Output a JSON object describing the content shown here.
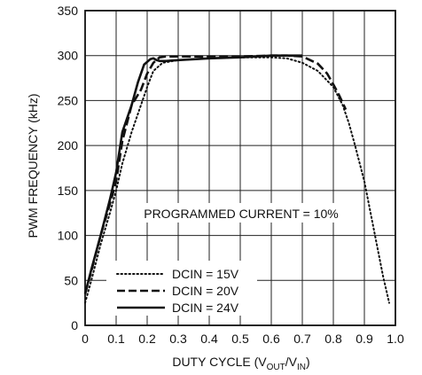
{
  "chart_data": {
    "type": "line",
    "xlabel": "DUTY CYCLE (V",
    "xlabel_sub1": "OUT",
    "xlabel_mid": "/V",
    "xlabel_sub2": "IN",
    "xlabel_end": ")",
    "ylabel": "PWM FREQUENCY (kHz)",
    "xlim": [
      0,
      1.0
    ],
    "ylim": [
      0,
      350
    ],
    "xticks": [
      "0",
      "0.1",
      "0.2",
      "0.3",
      "0.4",
      "0.5",
      "0.6",
      "0.7",
      "0.8",
      "0.9",
      "1.0"
    ],
    "yticks": [
      "0",
      "50",
      "100",
      "150",
      "200",
      "250",
      "300",
      "350"
    ],
    "grid": true,
    "legend_placement": "bottom-left",
    "annotation": "PROGRAMMED CURRENT = 10%",
    "series": [
      {
        "name": "DCIN = 15V",
        "style": "dotted",
        "x": [
          0.0,
          0.02,
          0.05,
          0.08,
          0.1,
          0.12,
          0.15,
          0.18,
          0.2,
          0.22,
          0.25,
          0.3,
          0.35,
          0.4,
          0.5,
          0.6,
          0.65,
          0.7,
          0.75,
          0.8,
          0.83,
          0.85,
          0.87,
          0.9,
          0.92,
          0.94,
          0.96,
          0.98
        ],
        "values": [
          25,
          50,
          90,
          125,
          150,
          180,
          215,
          245,
          265,
          283,
          292,
          295,
          296,
          297,
          298,
          298,
          297,
          292,
          283,
          265,
          245,
          225,
          200,
          160,
          125,
          90,
          55,
          25
        ]
      },
      {
        "name": "DCIN = 20V",
        "style": "dashed",
        "x": [
          0.0,
          0.02,
          0.05,
          0.08,
          0.1,
          0.12,
          0.15,
          0.18,
          0.2,
          0.22,
          0.24,
          0.26,
          0.3,
          0.4,
          0.5,
          0.6,
          0.65,
          0.7,
          0.75,
          0.78,
          0.8,
          0.82,
          0.84
        ],
        "values": [
          35,
          60,
          100,
          135,
          160,
          205,
          245,
          262,
          280,
          292,
          298,
          299,
          299,
          299,
          299,
          300,
          300,
          299,
          291,
          280,
          268,
          255,
          240
        ]
      },
      {
        "name": "DCIN = 24V",
        "style": "solid",
        "x": [
          0.0,
          0.02,
          0.05,
          0.08,
          0.1,
          0.12,
          0.15,
          0.17,
          0.19,
          0.21,
          0.22,
          0.23,
          0.24,
          0.26,
          0.3,
          0.4,
          0.5,
          0.6,
          0.65,
          0.7
        ],
        "values": [
          35,
          62,
          100,
          140,
          170,
          215,
          245,
          270,
          290,
          296,
          297,
          295,
          294,
          294,
          295,
          297,
          298,
          300,
          300,
          300
        ]
      }
    ]
  }
}
